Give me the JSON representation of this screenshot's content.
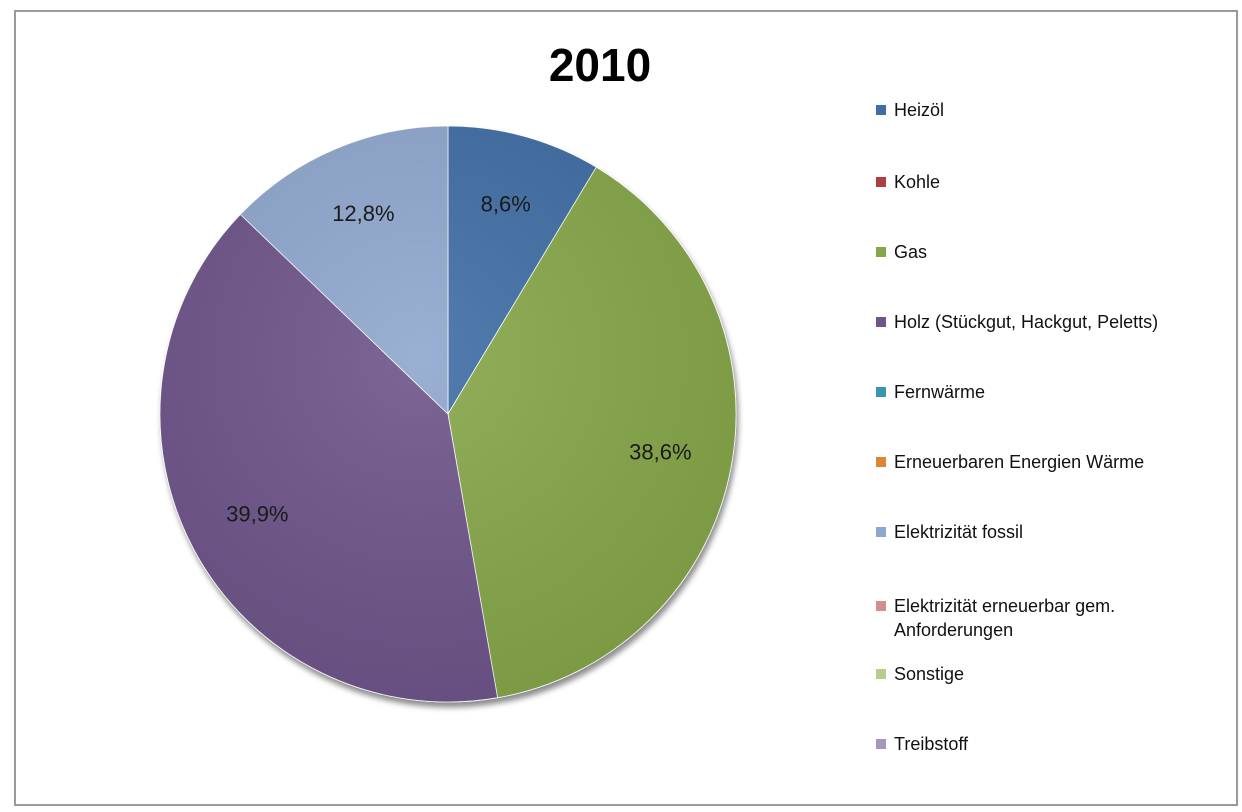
{
  "chart_data": {
    "type": "pie",
    "title": "2010",
    "categories": [
      "Heizöl",
      "Kohle",
      "Gas",
      "Holz (Stückgut, Hackgut, Peletts)",
      "Fernwärme",
      "Erneuerbaren Energien Wärme",
      "Elektrizität fossil",
      "Elektrizität erneuerbar gem. Anforderungen",
      "Sonstige",
      "Treibstoff"
    ],
    "values": [
      8.6,
      0,
      38.6,
      39.9,
      0,
      0,
      12.8,
      0,
      0,
      0
    ],
    "data_labels": [
      "8,6%",
      "",
      "38,6%",
      "39,9%",
      "",
      "",
      "12,8%",
      "",
      "",
      ""
    ],
    "colors": [
      "#3F6EA5",
      "#A8413F",
      "#86A64A",
      "#6E548A",
      "#3895AE",
      "#DE8535",
      "#8FA7CE",
      "#D28F8E",
      "#B6CD8C",
      "#A596BD"
    ],
    "legend_position": "right"
  }
}
